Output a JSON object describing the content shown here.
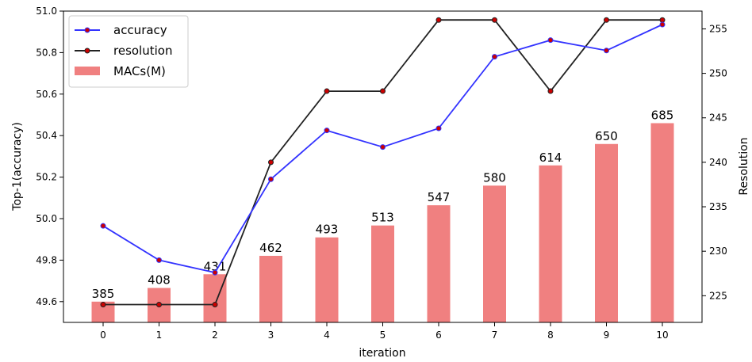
{
  "chart_data": {
    "type": "bar+line",
    "x": [
      0,
      1,
      2,
      3,
      4,
      5,
      6,
      7,
      8,
      9,
      10
    ],
    "xlabel": "iteration",
    "ylabel_left": "Top-1(accuracy)",
    "ylabel_right": "Resolution",
    "ylim_left": [
      49.5,
      51.0
    ],
    "ylim_right": [
      222,
      257
    ],
    "yticks_left": [
      "49.6",
      "49.8",
      "50.0",
      "50.2",
      "50.4",
      "50.6",
      "50.8",
      "51.0"
    ],
    "yticks_right": [
      "225",
      "230",
      "235",
      "240",
      "245",
      "250",
      "255"
    ],
    "grid": false,
    "legend_position": "top-left",
    "series": [
      {
        "name": "accuracy",
        "type": "line",
        "axis": "left",
        "color": "#3333ff",
        "marker_color": "#cc0000",
        "values": [
          49.965,
          49.8,
          49.74,
          50.19,
          50.425,
          50.345,
          50.435,
          50.78,
          50.86,
          50.81,
          50.935
        ]
      },
      {
        "name": "resolution",
        "type": "line",
        "axis": "right",
        "color": "#222222",
        "marker_color": "#cc0000",
        "values": [
          224,
          224,
          224,
          240,
          248,
          248,
          256,
          256,
          248,
          256,
          256
        ]
      },
      {
        "name": "MACs(M)",
        "type": "bar",
        "axis": "left-scaled",
        "color": "#f08080",
        "values": [
          385,
          408,
          431,
          462,
          493,
          513,
          547,
          580,
          614,
          650,
          685
        ],
        "labels": [
          "385",
          "408",
          "431",
          "462",
          "493",
          "513",
          "547",
          "580",
          "614",
          "650",
          "685"
        ]
      }
    ]
  }
}
